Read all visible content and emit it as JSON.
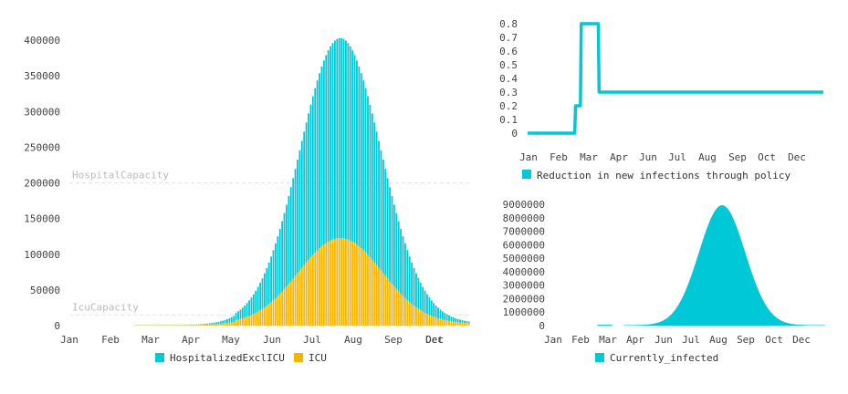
{
  "colors": {
    "hospitalized": "#00c8d7",
    "icu": "#f7b500",
    "policy": "#00c8d7",
    "infected": "#00c8d7",
    "refline": "#e2e2e2"
  },
  "chart_data": [
    {
      "id": "main",
      "type": "bar",
      "stacked": true,
      "months": [
        "Jan",
        "Feb",
        "Mar",
        "Apr",
        "May",
        "Jun",
        "Jul",
        "Aug",
        "Sep",
        "Oct",
        "Dec"
      ],
      "yticks": [
        "0",
        "50000",
        "100000",
        "150000",
        "200000",
        "250000",
        "300000",
        "350000",
        "400000"
      ],
      "ylim": [
        0,
        400000
      ],
      "series": [
        {
          "name": "HospitalizedExclICU",
          "peak_total": 400000,
          "peak_day": 247,
          "start_day": 60
        },
        {
          "name": "ICU",
          "peak": 120000,
          "peak_day": 247
        }
      ],
      "reference_lines": [
        {
          "label": "HospitalCapacity",
          "value": 200000
        },
        {
          "label": "IcuCapacity",
          "value": 15000
        }
      ],
      "legend": [
        "HospitalizedExclICU",
        "ICU"
      ]
    },
    {
      "id": "policy",
      "type": "line",
      "months": [
        "Jan",
        "Feb",
        "Mar",
        "Apr",
        "Jun",
        "Jul",
        "Aug",
        "Sep",
        "Oct",
        "Dec"
      ],
      "yticks": [
        "0",
        "0.1",
        "0.2",
        "0.3",
        "0.4",
        "0.5",
        "0.6",
        "0.7",
        "0.8"
      ],
      "ylim": [
        0,
        0.8
      ],
      "points": [
        [
          1,
          0
        ],
        [
          59,
          0
        ],
        [
          60,
          0.2
        ],
        [
          66,
          0.2
        ],
        [
          67,
          0.8
        ],
        [
          88,
          0.8
        ],
        [
          89,
          0.3
        ],
        [
          365,
          0.3
        ]
      ],
      "legend": [
        "Reduction in new infections through policy"
      ]
    },
    {
      "id": "infected",
      "type": "area",
      "months": [
        "Jan",
        "Feb",
        "Mar",
        "Apr",
        "Jun",
        "Jul",
        "Aug",
        "Sep",
        "Oct",
        "Dec"
      ],
      "yticks": [
        "0",
        "1000000",
        "2000000",
        "3000000",
        "4000000",
        "5000000",
        "6000000",
        "7000000",
        "8000000",
        "9000000"
      ],
      "ylim": [
        0,
        9000000
      ],
      "peak": 8900000,
      "peak_day": 227,
      "legend": [
        "Currently_infected"
      ]
    }
  ]
}
